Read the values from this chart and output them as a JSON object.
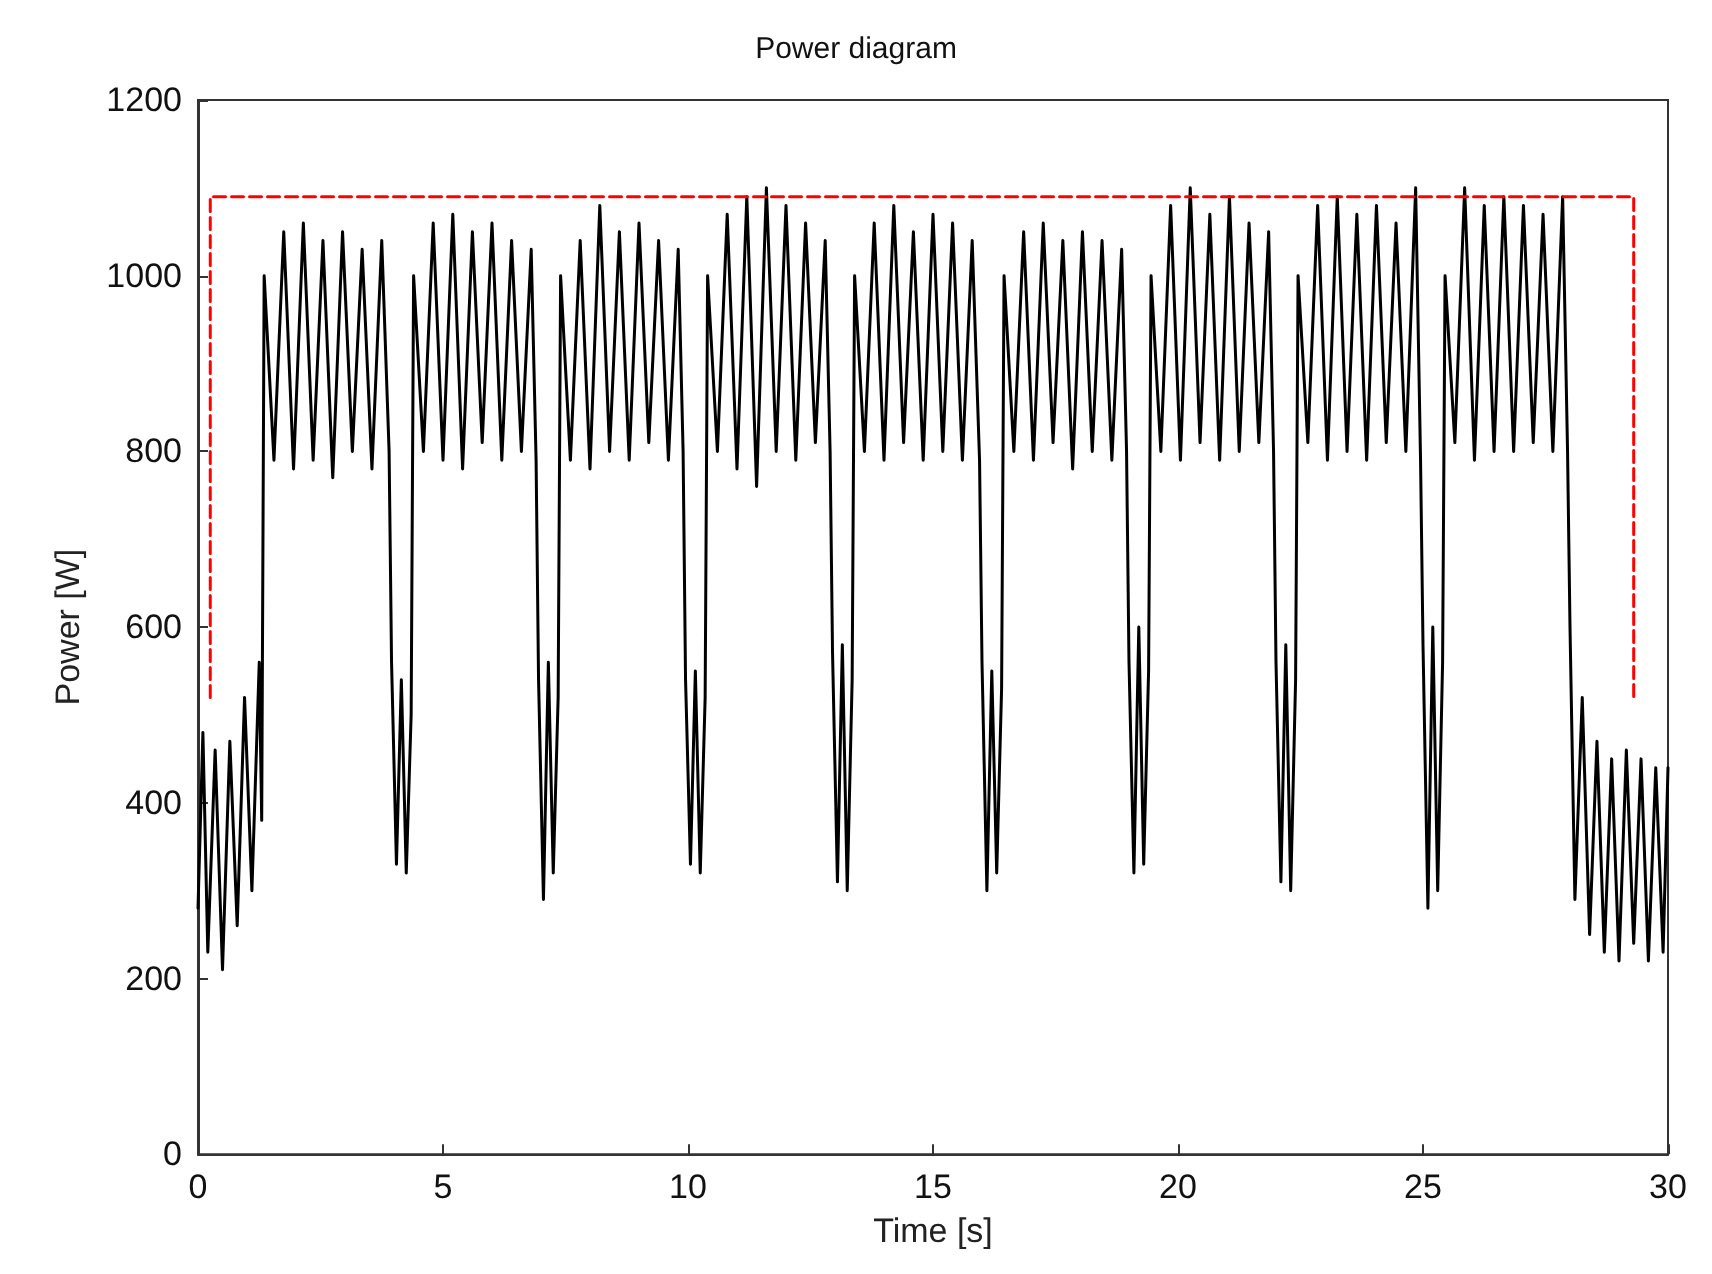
{
  "chart_data": {
    "type": "line",
    "title": "Power diagram",
    "xlabel": "Time [s]",
    "ylabel": "Power [W]",
    "xlim": [
      0,
      30
    ],
    "xticks": [
      0,
      5,
      10,
      15,
      20,
      25,
      30
    ],
    "ylim": [
      0,
      1200
    ],
    "yticks": [
      0,
      200,
      400,
      600,
      800,
      1000,
      1200
    ],
    "grid": false,
    "marker": "none",
    "series": [
      {
        "color": "#000000",
        "line_style": "solid",
        "x": [
          0,
          0.1,
          0.2,
          0.35,
          0.5,
          0.65,
          0.8,
          0.95,
          1.1,
          1.25,
          1.3,
          1.35,
          1.55,
          1.75,
          1.95,
          2.15,
          2.35,
          2.55,
          2.75,
          2.95,
          3.15,
          3.35,
          3.55,
          3.75,
          3.9,
          3.95,
          4.05,
          4.15,
          4.25,
          4.35,
          4.4,
          4.6,
          4.8,
          5.0,
          5.2,
          5.4,
          5.6,
          5.8,
          6.0,
          6.2,
          6.4,
          6.6,
          6.8,
          6.9,
          6.95,
          7.05,
          7.15,
          7.25,
          7.35,
          7.4,
          7.6,
          7.8,
          8.0,
          8.2,
          8.4,
          8.6,
          8.8,
          9.0,
          9.2,
          9.4,
          9.6,
          9.8,
          9.9,
          9.95,
          10.05,
          10.15,
          10.25,
          10.35,
          10.4,
          10.6,
          10.8,
          11.0,
          11.2,
          11.4,
          11.6,
          11.8,
          12.0,
          12.2,
          12.4,
          12.6,
          12.8,
          12.9,
          12.95,
          13.05,
          13.15,
          13.25,
          13.35,
          13.4,
          13.6,
          13.8,
          14.0,
          14.2,
          14.4,
          14.6,
          14.8,
          15.0,
          15.2,
          15.4,
          15.6,
          15.8,
          15.95,
          16.0,
          16.1,
          16.2,
          16.3,
          16.4,
          16.45,
          16.65,
          16.85,
          17.05,
          17.25,
          17.45,
          17.65,
          17.85,
          18.05,
          18.25,
          18.45,
          18.65,
          18.85,
          18.95,
          19.0,
          19.1,
          19.2,
          19.3,
          19.4,
          19.45,
          19.65,
          19.85,
          20.05,
          20.25,
          20.45,
          20.65,
          20.85,
          21.05,
          21.25,
          21.45,
          21.65,
          21.85,
          21.95,
          22.0,
          22.1,
          22.2,
          22.3,
          22.4,
          22.45,
          22.65,
          22.85,
          23.05,
          23.25,
          23.45,
          23.65,
          23.85,
          24.05,
          24.25,
          24.45,
          24.65,
          24.85,
          24.95,
          25.0,
          25.1,
          25.2,
          25.3,
          25.4,
          25.45,
          25.65,
          25.85,
          26.05,
          26.25,
          26.45,
          26.65,
          26.85,
          27.05,
          27.25,
          27.45,
          27.65,
          27.85,
          27.95,
          28.0,
          28.1,
          28.25,
          28.4,
          28.55,
          28.7,
          28.85,
          29.0,
          29.15,
          29.3,
          29.45,
          29.6,
          29.75,
          29.9,
          30
        ],
        "values": [
          280,
          480,
          230,
          460,
          210,
          470,
          260,
          520,
          300,
          560,
          380,
          1000,
          790,
          1050,
          780,
          1060,
          790,
          1040,
          770,
          1050,
          800,
          1030,
          780,
          1040,
          800,
          560,
          330,
          540,
          320,
          500,
          1000,
          800,
          1060,
          790,
          1070,
          780,
          1050,
          810,
          1060,
          790,
          1040,
          800,
          1030,
          790,
          540,
          290,
          560,
          320,
          520,
          1000,
          790,
          1040,
          780,
          1080,
          800,
          1050,
          790,
          1060,
          810,
          1040,
          790,
          1030,
          800,
          540,
          330,
          550,
          320,
          520,
          1000,
          800,
          1070,
          780,
          1090,
          760,
          1100,
          800,
          1080,
          790,
          1060,
          810,
          1040,
          800,
          570,
          310,
          580,
          300,
          540,
          1000,
          800,
          1060,
          790,
          1080,
          810,
          1050,
          790,
          1070,
          800,
          1060,
          790,
          1040,
          790,
          560,
          300,
          550,
          320,
          530,
          1000,
          800,
          1050,
          790,
          1060,
          810,
          1040,
          780,
          1050,
          800,
          1040,
          790,
          1030,
          800,
          560,
          320,
          600,
          330,
          550,
          1000,
          800,
          1080,
          790,
          1100,
          810,
          1070,
          790,
          1090,
          800,
          1060,
          810,
          1050,
          800,
          560,
          310,
          580,
          300,
          540,
          1000,
          810,
          1080,
          790,
          1090,
          800,
          1070,
          790,
          1080,
          810,
          1060,
          800,
          1100,
          790,
          580,
          280,
          600,
          300,
          560,
          1000,
          810,
          1100,
          790,
          1080,
          800,
          1090,
          800,
          1080,
          810,
          1070,
          800,
          1090,
          800,
          600,
          290,
          520,
          250,
          470,
          230,
          450,
          220,
          460,
          240,
          450,
          220,
          440,
          230,
          440
        ]
      },
      {
        "color": "#ff0000",
        "line_style": "dashed",
        "x": [
          0.25,
          0.25,
          29.3,
          29.3
        ],
        "values": [
          520,
          1090,
          1090,
          520
        ]
      }
    ]
  }
}
